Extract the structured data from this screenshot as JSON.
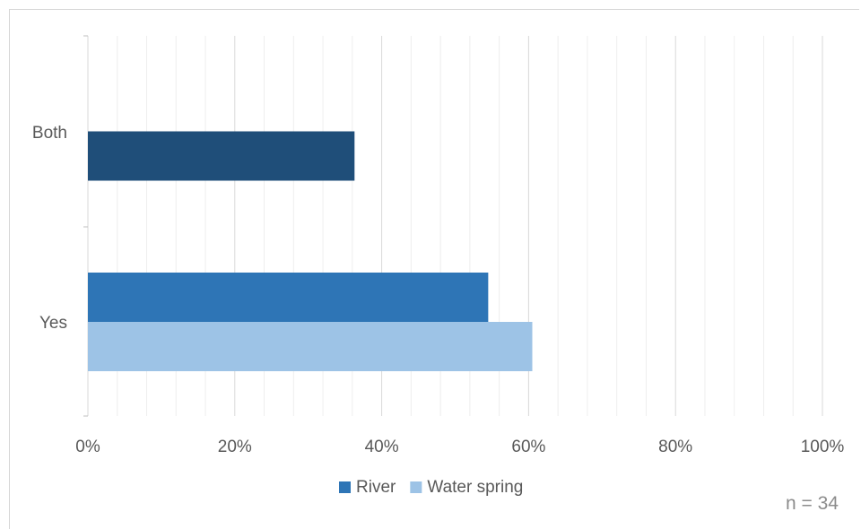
{
  "chart_data": {
    "type": "bar",
    "orientation": "horizontal",
    "categories": [
      "Yes",
      "Both"
    ],
    "series": [
      {
        "name": "River",
        "values": [
          54.5,
          null
        ],
        "color": "#2e75b6"
      },
      {
        "name": "Water spring",
        "values": [
          60.5,
          null
        ],
        "color": "#9dc3e6"
      }
    ],
    "extra_bars": [
      {
        "category": "Both",
        "value": 36.3,
        "color": "#1f4e79"
      }
    ],
    "x_ticks": [
      "0%",
      "20%",
      "40%",
      "60%",
      "80%",
      "100%"
    ],
    "xlim": [
      0,
      100
    ],
    "minor_grid_step": 4,
    "major_grid_step": 20,
    "grid": true,
    "legend_position": "bottom",
    "annotation": "n = 34",
    "title": "",
    "xlabel": "",
    "ylabel": ""
  }
}
